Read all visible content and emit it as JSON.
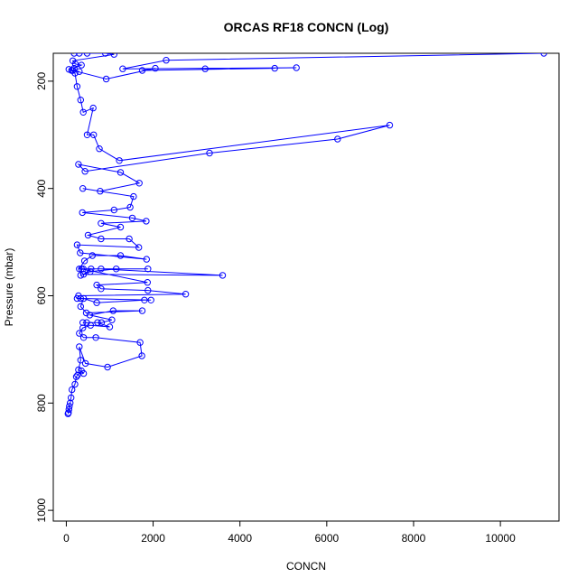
{
  "chart_data": {
    "type": "line",
    "title": "ORCAS RF18 CONCN (Log)",
    "xlabel": "CONCN",
    "ylabel": "Pressure (mbar)",
    "xlim": [
      -300,
      11350
    ],
    "ylim": [
      1020,
      148
    ],
    "x_ticks": [
      0,
      2000,
      4000,
      6000,
      8000,
      10000
    ],
    "y_ticks": [
      200,
      400,
      600,
      800,
      1000
    ],
    "series": [
      {
        "color": "#0000ff",
        "marker": "open-circle",
        "points": [
          [
            11000,
            148
          ],
          [
            2300,
            161
          ],
          [
            1300,
            177
          ],
          [
            5300,
            175
          ],
          [
            3200,
            177
          ],
          [
            4800,
            176
          ],
          [
            1750,
            180
          ],
          [
            2050,
            176
          ],
          [
            920,
            196
          ],
          [
            60,
            178
          ],
          [
            120,
            180
          ],
          [
            200,
            185
          ],
          [
            250,
            210
          ],
          [
            330,
            235
          ],
          [
            390,
            258
          ],
          [
            620,
            250
          ],
          [
            480,
            300
          ],
          [
            630,
            300
          ],
          [
            760,
            326
          ],
          [
            1220,
            348
          ],
          [
            7450,
            282
          ],
          [
            6250,
            308
          ],
          [
            3300,
            334
          ],
          [
            430,
            368
          ],
          [
            280,
            355
          ],
          [
            1250,
            370
          ],
          [
            1680,
            390
          ],
          [
            780,
            405
          ],
          [
            380,
            400
          ],
          [
            1550,
            415
          ],
          [
            1470,
            435
          ],
          [
            1100,
            440
          ],
          [
            370,
            445
          ],
          [
            1520,
            455
          ],
          [
            1840,
            461
          ],
          [
            800,
            465
          ],
          [
            1250,
            472
          ],
          [
            500,
            487
          ],
          [
            800,
            494
          ],
          [
            1450,
            494
          ],
          [
            1670,
            510
          ],
          [
            250,
            505
          ],
          [
            320,
            520
          ],
          [
            1850,
            532
          ],
          [
            1250,
            525
          ],
          [
            600,
            525
          ],
          [
            420,
            535
          ],
          [
            300,
            550
          ],
          [
            390,
            550
          ],
          [
            1880,
            550
          ],
          [
            570,
            550
          ],
          [
            400,
            560
          ],
          [
            3600,
            562
          ],
          [
            800,
            550
          ],
          [
            1150,
            550
          ],
          [
            550,
            555
          ],
          [
            330,
            562
          ],
          [
            350,
            550
          ],
          [
            1870,
            575
          ],
          [
            700,
            580
          ],
          [
            800,
            587
          ],
          [
            1880,
            590
          ],
          [
            2750,
            597
          ],
          [
            280,
            600
          ],
          [
            250,
            605
          ],
          [
            330,
            605
          ],
          [
            1950,
            608
          ],
          [
            1800,
            608
          ],
          [
            700,
            613
          ],
          [
            400,
            605
          ],
          [
            330,
            620
          ],
          [
            460,
            632
          ],
          [
            1750,
            628
          ],
          [
            1080,
            628
          ],
          [
            540,
            636
          ],
          [
            1050,
            645
          ],
          [
            810,
            650
          ],
          [
            380,
            650
          ],
          [
            470,
            650
          ],
          [
            720,
            650
          ],
          [
            1000,
            658
          ],
          [
            560,
            655
          ],
          [
            380,
            660
          ],
          [
            300,
            670
          ],
          [
            400,
            678
          ],
          [
            680,
            678
          ],
          [
            1700,
            687
          ],
          [
            1740,
            712
          ],
          [
            950,
            733
          ],
          [
            440,
            726
          ],
          [
            300,
            695
          ],
          [
            330,
            720
          ],
          [
            280,
            738
          ],
          [
            400,
            745
          ],
          [
            350,
            740
          ],
          [
            260,
            748
          ],
          [
            230,
            751
          ],
          [
            200,
            765
          ],
          [
            130,
            775
          ],
          [
            110,
            790
          ],
          [
            90,
            800
          ],
          [
            70,
            806
          ],
          [
            60,
            812
          ],
          [
            50,
            818
          ],
          [
            40,
            820
          ]
        ]
      }
    ],
    "top_cluster_points": [
      [
        180,
        148
      ],
      [
        300,
        148
      ],
      [
        480,
        148
      ],
      [
        900,
        148
      ],
      [
        1100,
        150
      ],
      [
        150,
        162
      ],
      [
        210,
        168
      ],
      [
        350,
        170
      ],
      [
        180,
        176
      ],
      [
        150,
        180
      ],
      [
        300,
        182
      ]
    ]
  }
}
